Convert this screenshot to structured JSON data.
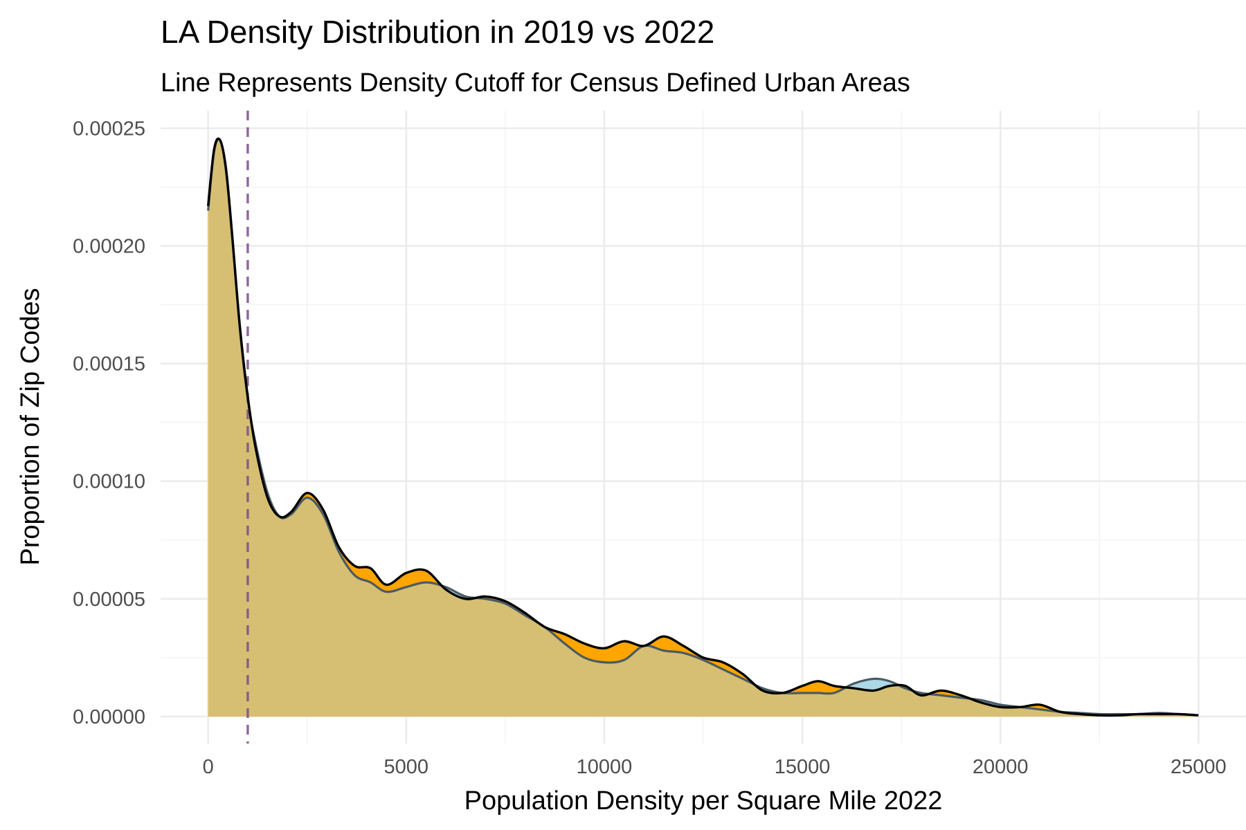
{
  "chart_data": {
    "type": "area",
    "title": "LA Density Distribution in 2019 vs 2022",
    "subtitle": "Line Represents Density Cutoff for Census Defined Urban Areas",
    "xlabel": "Population Density per Square Mile 2022",
    "ylabel": "Proportion of Zip Codes",
    "xlim": [
      -1200,
      26200
    ],
    "ylim": [
      -1.15e-05,
      0.0002575
    ],
    "x_ticks": [
      0,
      5000,
      10000,
      15000,
      20000,
      25000
    ],
    "x_tick_labels": [
      "0",
      "5000",
      "10000",
      "15000",
      "20000",
      "25000"
    ],
    "x_minor": [
      2500,
      7500,
      12500,
      17500,
      22500
    ],
    "y_ticks": [
      0,
      5e-05,
      0.0001,
      0.00015,
      0.0002,
      0.00025
    ],
    "y_tick_labels": [
      "0.00000",
      "0.00005",
      "0.00010",
      "0.00015",
      "0.00020",
      "0.00025"
    ],
    "y_minor": [
      2.5e-05,
      7.5e-05,
      0.000125,
      0.000175,
      0.000225
    ],
    "grid": true,
    "legend": "none",
    "reference_line": {
      "x": 1000,
      "color": "#7b4f8a",
      "style": "dashed"
    },
    "colors": {
      "series_a_fill": "#add8e6",
      "series_b_fill": "#ffa500",
      "overlap_fill": "#d6bf72",
      "outline": "#000000"
    },
    "series": [
      {
        "x": [
          0,
          150,
          300,
          450,
          600,
          800,
          1000,
          1200,
          1500,
          1800,
          2100,
          2500,
          2900,
          3300,
          3700,
          4100,
          4500,
          5000,
          5500,
          6000,
          6500,
          7000,
          7500,
          8000,
          8500,
          9000,
          9500,
          10000,
          10500,
          11000,
          11500,
          12000,
          12500,
          13000,
          13500,
          14000,
          14500,
          15000,
          15400,
          15800,
          16300,
          16800,
          17200,
          17600,
          18000,
          18500,
          19000,
          19500,
          20000,
          20500,
          21000,
          21500,
          22000,
          22500,
          23000,
          23500,
          24000,
          24500,
          25000
        ],
        "y": [
          0.000215,
          0.00024,
          0.000245,
          0.000232,
          0.000205,
          0.000165,
          0.000135,
          0.000116,
          9.5e-05,
          8.5e-05,
          8.6e-05,
          9.3e-05,
          8.6e-05,
          7e-05,
          6e-05,
          5.7e-05,
          5.3e-05,
          5.5e-05,
          5.7e-05,
          5.5e-05,
          5.1e-05,
          5e-05,
          4.8e-05,
          4.3e-05,
          3.8e-05,
          3.1e-05,
          2.5e-05,
          2.3e-05,
          2.4e-05,
          3e-05,
          2.8e-05,
          2.7e-05,
          2.4e-05,
          2e-05,
          1.6e-05,
          1.2e-05,
          1e-05,
          1e-05,
          1e-05,
          1e-05,
          1.4e-05,
          1.6e-05,
          1.5e-05,
          1.2e-05,
          1e-05,
          9e-06,
          8e-06,
          7e-06,
          5e-06,
          4e-06,
          3e-06,
          2e-06,
          1.5e-06,
          1e-06,
          1e-06,
          1e-06,
          1.5e-06,
          1e-06,
          5e-07
        ]
      },
      {
        "x": [
          0,
          150,
          300,
          450,
          600,
          800,
          1000,
          1200,
          1500,
          1800,
          2100,
          2500,
          2900,
          3300,
          3700,
          4100,
          4500,
          5000,
          5500,
          6000,
          6500,
          7000,
          7500,
          8000,
          8500,
          9000,
          9500,
          10000,
          10500,
          11000,
          11500,
          12000,
          12500,
          13000,
          13500,
          14000,
          14500,
          15000,
          15400,
          15800,
          16300,
          16800,
          17200,
          17600,
          18000,
          18500,
          19000,
          19500,
          20000,
          20500,
          21000,
          21500,
          22000,
          22500,
          23000,
          23500,
          24000,
          24500,
          25000
        ],
        "y": [
          0.000217,
          0.000241,
          0.000245,
          0.000233,
          0.000206,
          0.000166,
          0.000136,
          0.000114,
          9.3e-05,
          8.5e-05,
          8.7e-05,
          9.5e-05,
          8.8e-05,
          7.2e-05,
          6.4e-05,
          6.3e-05,
          5.6e-05,
          6.1e-05,
          6.2e-05,
          5.4e-05,
          5e-05,
          5.1e-05,
          4.9e-05,
          4.4e-05,
          3.8e-05,
          3.5e-05,
          3.1e-05,
          2.9e-05,
          3.2e-05,
          3e-05,
          3.4e-05,
          3e-05,
          2.5e-05,
          2.3e-05,
          1.8e-05,
          1.1e-05,
          1e-05,
          1.3e-05,
          1.5e-05,
          1.3e-05,
          1.2e-05,
          1.1e-05,
          1.3e-05,
          1.3e-05,
          9e-06,
          1.1e-05,
          9e-06,
          6e-06,
          4e-06,
          4e-06,
          5e-06,
          2e-06,
          1e-06,
          5e-07,
          5e-07,
          1e-06,
          1e-06,
          1e-06,
          5e-07
        ]
      }
    ]
  }
}
